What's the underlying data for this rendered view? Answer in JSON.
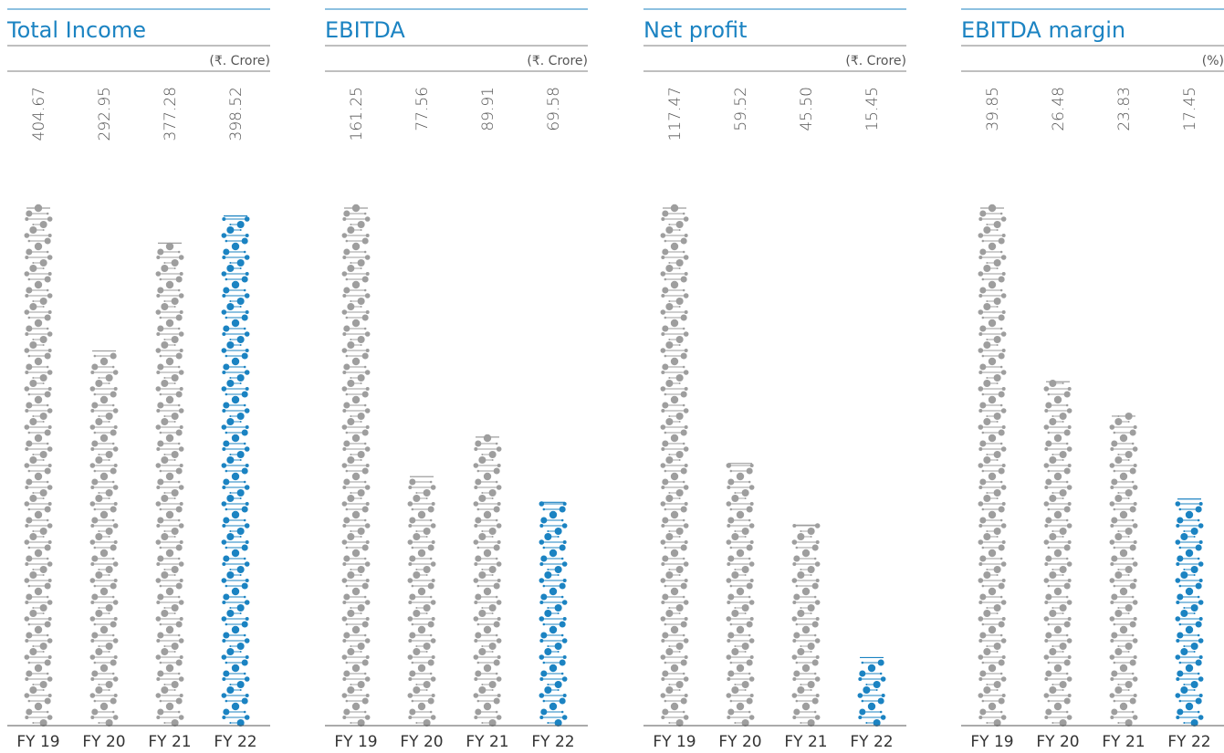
{
  "chart_data": [
    {
      "type": "bar",
      "title": "Total Income",
      "unit": "(₹. Crore)",
      "categories": [
        "FY 19",
        "FY 20",
        "FY 21",
        "FY 22"
      ],
      "values": [
        404.67,
        292.95,
        377.28,
        398.52
      ],
      "value_labels": [
        "404.67",
        "292.95",
        "377.28",
        "398.52"
      ],
      "colors": [
        "#9e9e9e",
        "#9e9e9e",
        "#9e9e9e",
        "#1b83c2"
      ]
    },
    {
      "type": "bar",
      "title": "EBITDA",
      "unit": "(₹. Crore)",
      "categories": [
        "FY 19",
        "FY 20",
        "FY 21",
        "FY 22"
      ],
      "values": [
        161.25,
        77.56,
        89.91,
        69.58
      ],
      "value_labels": [
        "161.25",
        "77.56",
        "89.91",
        "69.58"
      ],
      "colors": [
        "#9e9e9e",
        "#9e9e9e",
        "#9e9e9e",
        "#1b83c2"
      ]
    },
    {
      "type": "bar",
      "title": "Net profit",
      "unit": "(₹. Crore)",
      "categories": [
        "FY 19",
        "FY 20",
        "FY 21",
        "FY 22"
      ],
      "values": [
        117.47,
        59.52,
        45.5,
        15.45
      ],
      "value_labels": [
        "117.47",
        "59.52",
        "45.50",
        "15.45"
      ],
      "colors": [
        "#9e9e9e",
        "#9e9e9e",
        "#9e9e9e",
        "#1b83c2"
      ]
    },
    {
      "type": "bar",
      "title": "EBITDA margin",
      "unit": "(%)",
      "categories": [
        "FY 19",
        "FY 20",
        "FY 21",
        "FY 22"
      ],
      "values": [
        39.85,
        26.48,
        23.83,
        17.45
      ],
      "value_labels": [
        "39.85",
        "26.48",
        "23.83",
        "17.45"
      ],
      "colors": [
        "#9e9e9e",
        "#9e9e9e",
        "#9e9e9e",
        "#1b83c2"
      ]
    }
  ]
}
